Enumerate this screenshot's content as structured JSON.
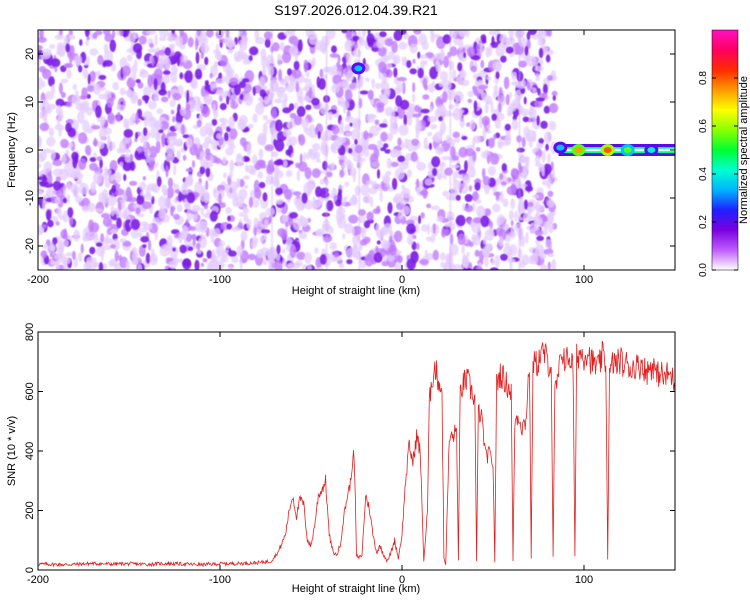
{
  "title": "S197.2026.012.04.39.R21",
  "chart_data": [
    {
      "type": "heatmap",
      "title": "S197.2026.012.04.39.R21",
      "xlabel": "Height of straight line (km)",
      "ylabel": "Frequency (Hz)",
      "xlim": [
        -200,
        150
      ],
      "ylim": [
        -25,
        25
      ],
      "xticks": [
        -200,
        -100,
        0,
        100
      ],
      "yticks": [
        -20,
        -10,
        0,
        10,
        20
      ],
      "noise_region_km": [
        -200,
        84
      ],
      "blank_region_km": [
        84,
        150
      ],
      "line_frequency_hz": 0,
      "line_start_km": 86,
      "bright_spots": [
        {
          "x_km": -24,
          "y_hz": 17,
          "level": 0.35
        },
        {
          "x_km": 87,
          "y_hz": 0.5,
          "level": 0.35
        },
        {
          "x_km": 97,
          "y_hz": 0,
          "level": 0.75
        },
        {
          "x_km": 113,
          "y_hz": 0,
          "level": 0.8
        },
        {
          "x_km": 124,
          "y_hz": 0,
          "level": 0.55
        },
        {
          "x_km": 137,
          "y_hz": 0,
          "level": 0.4
        }
      ],
      "colorbar": {
        "label": "Normalized spectral amplitude",
        "range": [
          0,
          1
        ],
        "ticks": [
          "0.0",
          "0.2",
          "0.4",
          "0.6",
          "0.8"
        ],
        "colors": [
          "#ffffff",
          "#c05cff",
          "#7a00e0",
          "#2020ff",
          "#00b4ff",
          "#00ffd0",
          "#00ff30",
          "#8cff00",
          "#ffff00",
          "#ff9a00",
          "#ff2a00",
          "#ff0060",
          "#ff10c0"
        ]
      }
    },
    {
      "type": "line",
      "xlabel": "Height of straight line (km)",
      "ylabel": "SNR (10 * v/v)",
      "xlim": [
        -200,
        150
      ],
      "ylim": [
        0,
        800
      ],
      "xticks": [
        -200,
        -100,
        0,
        100
      ],
      "yticks": [
        0,
        200,
        400,
        600,
        800
      ],
      "color": "#e02020",
      "series": [
        {
          "name": "SNR",
          "x": [
            -200,
            -185,
            -170,
            -160,
            -150,
            -140,
            -130,
            -120,
            -110,
            -100,
            -90,
            -80,
            -72,
            -68,
            -64,
            -62,
            -60,
            -58,
            -56,
            -54,
            -52,
            -50,
            -48,
            -46,
            -44,
            -42,
            -40,
            -38,
            -36,
            -34,
            -32,
            -30,
            -28,
            -27,
            -26,
            -25,
            -24,
            -22,
            -20,
            -18,
            -16,
            -14,
            -12,
            -10,
            -8,
            -6,
            -4,
            -2,
            0,
            2,
            4,
            6,
            8,
            10,
            12,
            14,
            15,
            16,
            18,
            20,
            22,
            23,
            24,
            26,
            28,
            30,
            31,
            32,
            34,
            36,
            38,
            40,
            41,
            42,
            44,
            46,
            48,
            50,
            51,
            52,
            54,
            56,
            58,
            60,
            61,
            62,
            64,
            66,
            68,
            70,
            71,
            72,
            74,
            76,
            78,
            80,
            82,
            83,
            84,
            86,
            88,
            90,
            92,
            94,
            95,
            96,
            98,
            100,
            102,
            104,
            106,
            108,
            110,
            112,
            113,
            114,
            116,
            118,
            120,
            122,
            124,
            126,
            128,
            130,
            132,
            134,
            136,
            138,
            140,
            142,
            144,
            146,
            148,
            150
          ],
          "values": [
            20,
            18,
            22,
            20,
            21,
            19,
            22,
            20,
            18,
            21,
            22,
            24,
            30,
            60,
            120,
            200,
            250,
            180,
            240,
            220,
            100,
            80,
            150,
            250,
            270,
            300,
            120,
            60,
            50,
            80,
            180,
            250,
            300,
            400,
            330,
            50,
            40,
            50,
            250,
            210,
            120,
            60,
            80,
            50,
            30,
            60,
            100,
            40,
            120,
            300,
            420,
            360,
            450,
            400,
            30,
            200,
            550,
            630,
            680,
            640,
            600,
            40,
            20,
            440,
            450,
            470,
            30,
            600,
            630,
            640,
            600,
            580,
            30,
            540,
            500,
            380,
            390,
            360,
            30,
            630,
            660,
            640,
            620,
            600,
            30,
            500,
            520,
            480,
            500,
            700,
            40,
            700,
            690,
            720,
            730,
            700,
            690,
            40,
            600,
            650,
            740,
            700,
            720,
            680,
            40,
            720,
            730,
            720,
            740,
            700,
            690,
            680,
            720,
            700,
            40,
            650,
            700,
            690,
            710,
            680,
            700,
            670,
            690,
            680,
            700,
            660,
            680,
            690,
            650,
            670,
            640,
            660,
            650,
            630
          ]
        }
      ]
    }
  ]
}
